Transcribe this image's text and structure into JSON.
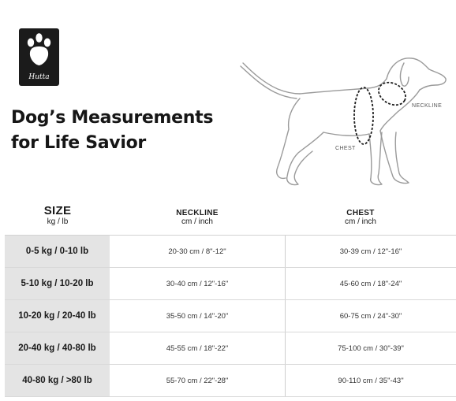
{
  "logo": {
    "text": "Hutta"
  },
  "title": {
    "line1": "Dog’s Measurements",
    "line2": "for Life Savior"
  },
  "diagram": {
    "neckline_label": "NECKLINE",
    "chest_label": "CHEST"
  },
  "table": {
    "headers": {
      "size": {
        "main": "SIZE",
        "sub": "kg / lb"
      },
      "neckline": {
        "main": "NECKLINE",
        "sub": "cm / inch"
      },
      "chest": {
        "main": "CHEST",
        "sub": "cm / inch"
      }
    },
    "rows": [
      {
        "size": "0-5 kg / 0-10 lb",
        "neckline": "20-30 cm / 8\"-12\"",
        "chest": "30-39 cm / 12\"-16\""
      },
      {
        "size": "5-10 kg / 10-20 lb",
        "neckline": "30-40 cm / 12\"-16\"",
        "chest": "45-60 cm / 18\"-24\""
      },
      {
        "size": "10-20 kg / 20-40 lb",
        "neckline": "35-50 cm / 14\"-20\"",
        "chest": "60-75 cm / 24\"-30\""
      },
      {
        "size": "20-40 kg / 40-80 lb",
        "neckline": "45-55 cm / 18\"-22\"",
        "chest": "75-100 cm / 30\"-39\""
      },
      {
        "size": "40-80 kg / >80 lb",
        "neckline": "55-70 cm / 22\"-28\"",
        "chest": "90-110 cm / 35\"-43\""
      }
    ]
  }
}
